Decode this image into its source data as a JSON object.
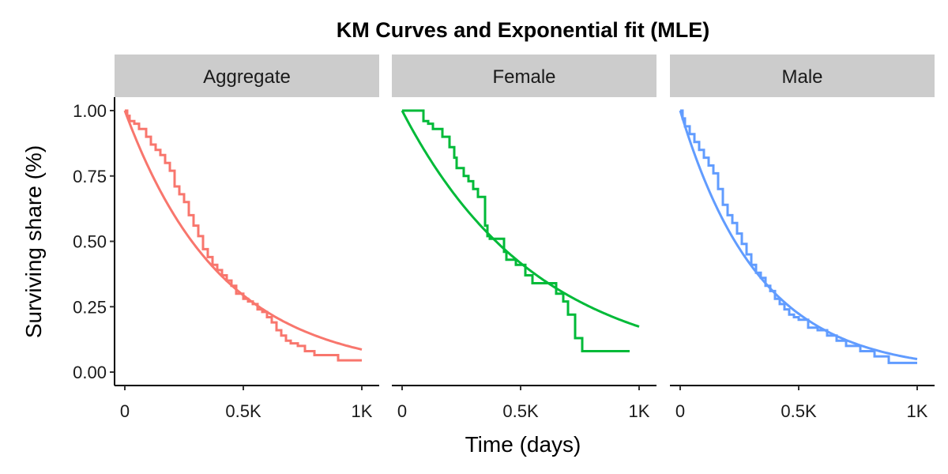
{
  "chart_data": {
    "type": "line",
    "title": "KM Curves and Exponential fit (MLE)",
    "xlabel": "Time (days)",
    "ylabel": "Surviving share (%)",
    "xlim": [
      0,
      1000
    ],
    "ylim": [
      0,
      1
    ],
    "x_ticks": [
      0,
      500,
      1000
    ],
    "x_tick_labels": [
      "0",
      "0.5K",
      "1K"
    ],
    "y_ticks": [
      0,
      0.25,
      0.5,
      0.75,
      1
    ],
    "y_tick_labels": [
      "0.00",
      "0.25",
      "0.50",
      "0.75",
      "1.00"
    ],
    "grid": false,
    "legend": "none",
    "facets": [
      {
        "label": "Aggregate",
        "color": "#F8766D",
        "km": {
          "x": [
            0,
            10,
            20,
            40,
            60,
            90,
            110,
            130,
            150,
            170,
            190,
            210,
            230,
            250,
            270,
            290,
            310,
            330,
            350,
            370,
            390,
            410,
            430,
            450,
            470,
            500,
            520,
            540,
            560,
            580,
            600,
            620,
            640,
            660,
            680,
            700,
            730,
            760,
            800,
            880,
            900,
            1000
          ],
          "y": [
            1.0,
            0.98,
            0.96,
            0.95,
            0.93,
            0.9,
            0.87,
            0.85,
            0.83,
            0.8,
            0.77,
            0.71,
            0.68,
            0.65,
            0.6,
            0.56,
            0.52,
            0.47,
            0.44,
            0.41,
            0.39,
            0.37,
            0.35,
            0.33,
            0.3,
            0.28,
            0.27,
            0.26,
            0.24,
            0.23,
            0.21,
            0.19,
            0.16,
            0.14,
            0.12,
            0.11,
            0.1,
            0.08,
            0.065,
            0.065,
            0.045,
            0.045
          ]
        },
        "fit": {
          "rate": 0.00245
        }
      },
      {
        "label": "Female",
        "color": "#00BA38",
        "km": {
          "x": [
            0,
            80,
            90,
            110,
            130,
            170,
            200,
            220,
            230,
            260,
            280,
            300,
            320,
            350,
            360,
            370,
            400,
            430,
            440,
            480,
            500,
            520,
            550,
            600,
            630,
            650,
            680,
            700,
            730,
            760,
            960
          ],
          "y": [
            1.0,
            1.0,
            0.96,
            0.95,
            0.93,
            0.9,
            0.86,
            0.82,
            0.78,
            0.75,
            0.73,
            0.7,
            0.67,
            0.56,
            0.52,
            0.51,
            0.51,
            0.46,
            0.43,
            0.41,
            0.41,
            0.37,
            0.34,
            0.34,
            0.34,
            0.3,
            0.27,
            0.22,
            0.13,
            0.08,
            0.08
          ]
        },
        "fit": {
          "rate": 0.00175
        }
      },
      {
        "label": "Male",
        "color": "#619CFF",
        "km": {
          "x": [
            0,
            10,
            20,
            40,
            60,
            80,
            100,
            120,
            140,
            160,
            180,
            200,
            220,
            240,
            260,
            280,
            300,
            320,
            340,
            360,
            380,
            400,
            420,
            440,
            460,
            480,
            500,
            540,
            580,
            620,
            660,
            700,
            760,
            820,
            880,
            1000
          ],
          "y": [
            1.0,
            0.97,
            0.94,
            0.91,
            0.88,
            0.85,
            0.82,
            0.79,
            0.76,
            0.7,
            0.64,
            0.6,
            0.57,
            0.53,
            0.49,
            0.45,
            0.41,
            0.38,
            0.36,
            0.33,
            0.31,
            0.28,
            0.26,
            0.24,
            0.22,
            0.21,
            0.2,
            0.17,
            0.16,
            0.14,
            0.12,
            0.1,
            0.08,
            0.06,
            0.035,
            0.035
          ]
        },
        "fit": {
          "rate": 0.003
        }
      }
    ]
  }
}
